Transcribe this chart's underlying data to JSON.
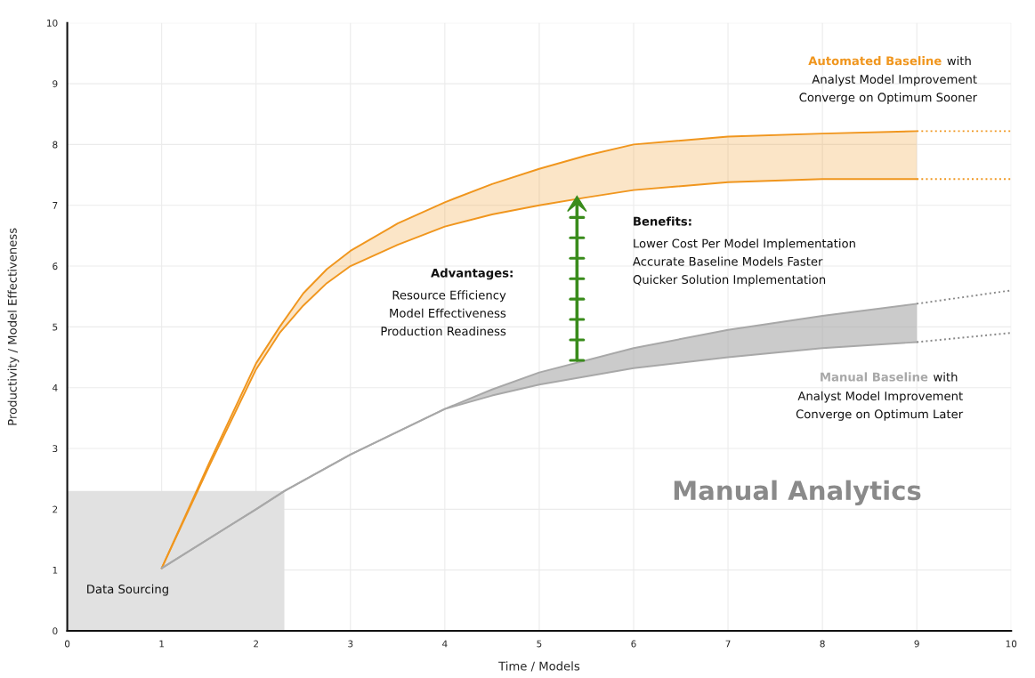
{
  "chart_data": {
    "type": "line",
    "xlabel": "Time / Models",
    "ylabel": "Productivity / Model Effectiveness",
    "xlim": [
      0,
      10
    ],
    "ylim": [
      0,
      10
    ],
    "xticks": [
      0,
      1,
      2,
      3,
      4,
      5,
      6,
      7,
      8,
      9,
      10
    ],
    "yticks": [
      0,
      1,
      2,
      3,
      4,
      5,
      6,
      7,
      8,
      9,
      10
    ],
    "grid": true,
    "series": [
      {
        "type": "area",
        "color": "#e1e1e1",
        "x": [
          0,
          2.3
        ],
        "values": [
          2.3,
          2.3
        ]
      },
      {
        "name": "Automated Baseline",
        "color": "#f0961e",
        "x": [
          1,
          1.5,
          2,
          2.25,
          2.5,
          2.75,
          3,
          3.5,
          4,
          4.5,
          5,
          5.5,
          6,
          7,
          8,
          9
        ],
        "values": [
          1.03,
          2.75,
          4.4,
          5.0,
          5.55,
          5.95,
          6.25,
          6.7,
          7.05,
          7.35,
          7.6,
          7.82,
          8.0,
          8.13,
          8.18,
          8.22
        ],
        "lower": [
          1.03,
          2.7,
          4.3,
          4.9,
          5.35,
          5.72,
          6.0,
          6.35,
          6.65,
          6.85,
          7.0,
          7.13,
          7.25,
          7.38,
          7.43,
          7.43
        ],
        "upper": [
          1.03,
          2.75,
          4.4,
          5.0,
          5.55,
          5.95,
          6.25,
          6.7,
          7.05,
          7.35,
          7.6,
          7.82,
          8.0,
          8.13,
          8.18,
          8.22
        ]
      },
      {
        "color": "#f0961e",
        "x": [
          1,
          1.5,
          2,
          2.25,
          2.5,
          2.75,
          3,
          3.5,
          4,
          4.5,
          5,
          5.5,
          6,
          7,
          8,
          9
        ],
        "values": [
          1.03,
          2.7,
          4.3,
          4.9,
          5.35,
          5.72,
          6.0,
          6.35,
          6.65,
          6.85,
          7.0,
          7.13,
          7.25,
          7.38,
          7.43,
          7.43
        ]
      },
      {
        "color": "#f0961e",
        "line_style": "dotted",
        "x": [
          9,
          10
        ],
        "values": [
          8.22,
          8.22
        ]
      },
      {
        "color": "#f0961e",
        "line_style": "dotted",
        "x": [
          9,
          10
        ],
        "values": [
          7.43,
          7.43
        ]
      },
      {
        "name": "Manual Baseline",
        "color": "#a8a8a8",
        "x": [
          1,
          2,
          2.3,
          3,
          4,
          4.5,
          5,
          6,
          7,
          8,
          9
        ],
        "values": [
          1.03,
          2.0,
          2.3,
          2.9,
          3.65,
          3.97,
          4.25,
          4.65,
          4.95,
          5.18,
          5.38
        ],
        "lower": [
          1.03,
          2.0,
          2.3,
          2.9,
          3.65,
          3.87,
          4.05,
          4.32,
          4.5,
          4.65,
          4.75
        ],
        "upper": [
          1.03,
          2.0,
          2.3,
          2.9,
          3.65,
          3.97,
          4.25,
          4.65,
          4.95,
          5.18,
          5.38
        ]
      },
      {
        "color": "#a8a8a8",
        "x": [
          1,
          2,
          2.3,
          3,
          4,
          4.5,
          5,
          6,
          7,
          8,
          9
        ],
        "values": [
          1.03,
          2.0,
          2.3,
          2.9,
          3.65,
          3.87,
          4.05,
          4.32,
          4.5,
          4.65,
          4.75
        ]
      },
      {
        "color": "#888888",
        "line_style": "dotted",
        "x": [
          9,
          10
        ],
        "values": [
          5.38,
          5.6
        ]
      },
      {
        "color": "#888888",
        "line_style": "dotted",
        "x": [
          9,
          10
        ],
        "values": [
          4.75,
          4.9
        ]
      }
    ],
    "annotations": [
      "with",
      "Analyst Model Improvement\nConverge on Optimum Sooner",
      "with",
      "Analyst Model Improvement\nConverge on Optimum Later",
      "Advantages:",
      "Resource Efficiency\nModel Effectiveness\nProduction Readiness",
      "Benefits:",
      "Lower Cost Per Model Implementation\nAccurate Baseline Models Faster\nQuicker Solution Implementation",
      "Manual Analytics",
      "Data Sourcing"
    ]
  }
}
